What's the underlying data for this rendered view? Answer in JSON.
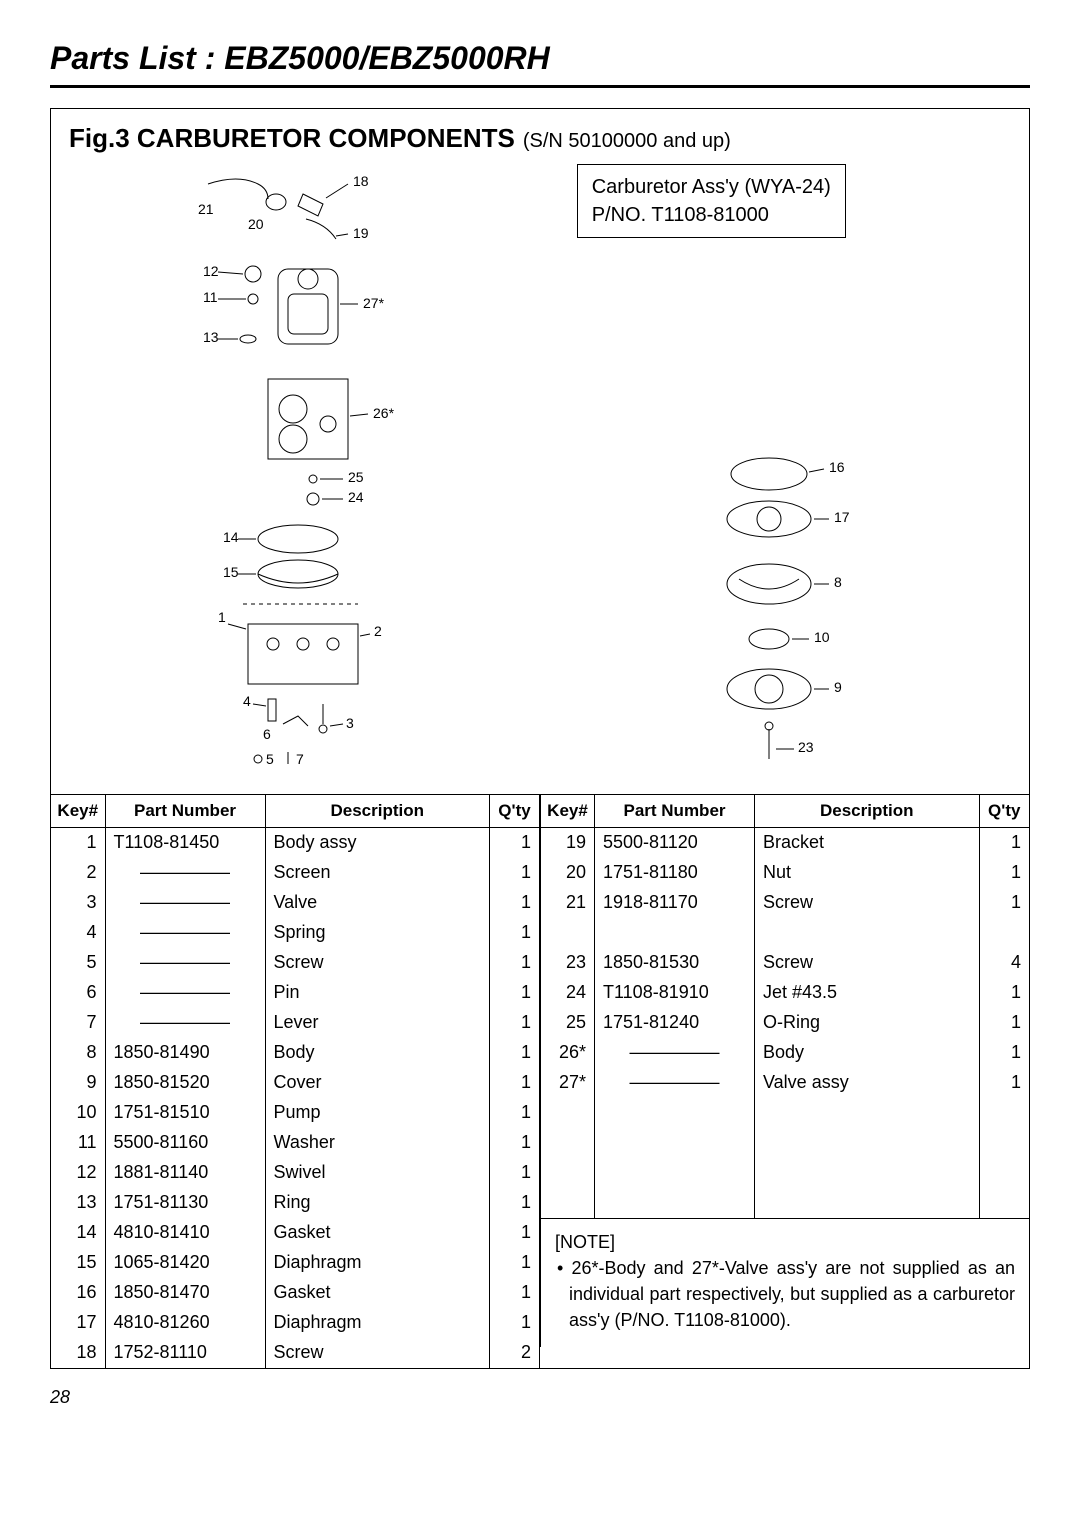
{
  "page": {
    "title": "Parts List : EBZ5000/EBZ5000RH",
    "number": "28"
  },
  "figure": {
    "title_bold": "Fig.3 CARBURETOR COMPONENTS",
    "title_reg": "(S/N 50100000 and up)"
  },
  "assy_box": {
    "line1": "Carburetor Ass'y (WYA-24)",
    "line2": "P/NO. T1108-81000"
  },
  "headers": {
    "key": "Key#",
    "pn": "Part Number",
    "desc": "Description",
    "qty": "Q'ty"
  },
  "left_rows": [
    {
      "key": "1",
      "pn": "T1108-81450",
      "desc": "Body assy",
      "qty": "1"
    },
    {
      "key": "2",
      "pn": "—————",
      "desc": "Screen",
      "qty": "1",
      "dash": true
    },
    {
      "key": "3",
      "pn": "—————",
      "desc": "Valve",
      "qty": "1",
      "dash": true
    },
    {
      "key": "4",
      "pn": "—————",
      "desc": "Spring",
      "qty": "1",
      "dash": true
    },
    {
      "key": "5",
      "pn": "—————",
      "desc": "Screw",
      "qty": "1",
      "dash": true
    },
    {
      "key": "6",
      "pn": "—————",
      "desc": "Pin",
      "qty": "1",
      "dash": true
    },
    {
      "key": "7",
      "pn": "—————",
      "desc": "Lever",
      "qty": "1",
      "dash": true
    },
    {
      "key": "8",
      "pn": "1850-81490",
      "desc": "Body",
      "qty": "1"
    },
    {
      "key": "9",
      "pn": "1850-81520",
      "desc": "Cover",
      "qty": "1"
    },
    {
      "key": "10",
      "pn": "1751-81510",
      "desc": "Pump",
      "qty": "1"
    },
    {
      "key": "11",
      "pn": "5500-81160",
      "desc": "Washer",
      "qty": "1"
    },
    {
      "key": "12",
      "pn": "1881-81140",
      "desc": "Swivel",
      "qty": "1"
    },
    {
      "key": "13",
      "pn": "1751-81130",
      "desc": "Ring",
      "qty": "1"
    },
    {
      "key": "14",
      "pn": "4810-81410",
      "desc": "Gasket",
      "qty": "1"
    },
    {
      "key": "15",
      "pn": "1065-81420",
      "desc": "Diaphragm",
      "qty": "1"
    },
    {
      "key": "16",
      "pn": "1850-81470",
      "desc": "Gasket",
      "qty": "1"
    },
    {
      "key": "17",
      "pn": "4810-81260",
      "desc": "Diaphragm",
      "qty": "1"
    },
    {
      "key": "18",
      "pn": "1752-81110",
      "desc": "Screw",
      "qty": "2"
    }
  ],
  "right_rows": [
    {
      "key": "19",
      "pn": "5500-81120",
      "desc": "Bracket",
      "qty": "1"
    },
    {
      "key": "20",
      "pn": "1751-81180",
      "desc": "Nut",
      "qty": "1"
    },
    {
      "key": "21",
      "pn": "1918-81170",
      "desc": "Screw",
      "qty": "1"
    },
    {
      "key": "",
      "pn": "",
      "desc": "",
      "qty": ""
    },
    {
      "key": "23",
      "pn": "1850-81530",
      "desc": "Screw",
      "qty": "4"
    },
    {
      "key": "24",
      "pn": "T1108-81910",
      "desc": "Jet  #43.5",
      "qty": "1"
    },
    {
      "key": "25",
      "pn": "1751-81240",
      "desc": "O-Ring",
      "qty": "1"
    },
    {
      "key": "26*",
      "pn": "—————",
      "desc": "Body",
      "qty": "1",
      "dash": true
    },
    {
      "key": "27*",
      "pn": "—————",
      "desc": "Valve assy",
      "qty": "1",
      "dash": true
    },
    {
      "key": "",
      "pn": "",
      "desc": "",
      "qty": ""
    },
    {
      "key": "",
      "pn": "",
      "desc": "",
      "qty": ""
    },
    {
      "key": "",
      "pn": "",
      "desc": "",
      "qty": ""
    },
    {
      "key": "",
      "pn": "",
      "desc": "",
      "qty": ""
    }
  ],
  "note": {
    "heading": "[NOTE]",
    "body": "• 26*-Body and 27*-Valve ass'y are not supplied as an individual part respectively, but supplied as a carburetor ass'y (P/NO. T1108-81000)."
  },
  "diagram_labels": {
    "left": [
      "21",
      "20",
      "18",
      "19",
      "12",
      "11",
      "13",
      "27*",
      "26*",
      "25",
      "24",
      "14",
      "15",
      "1",
      "2",
      "4",
      "6",
      "3",
      "5",
      "7"
    ],
    "right": [
      "16",
      "17",
      "8",
      "10",
      "9",
      "23"
    ]
  }
}
